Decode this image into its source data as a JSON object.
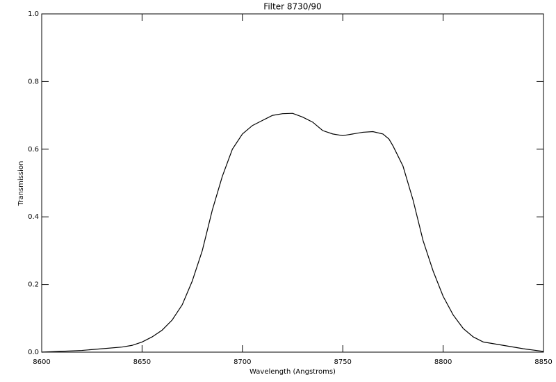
{
  "chart_data": {
    "type": "line",
    "title": "Filter 8730/90",
    "x_label": "Wavelength (Angstroms)",
    "y_label": "Transmission",
    "x": [
      8600,
      8620,
      8630,
      8640,
      8645,
      8650,
      8655,
      8660,
      8665,
      8670,
      8675,
      8680,
      8685,
      8690,
      8695,
      8700,
      8705,
      8710,
      8715,
      8720,
      8725,
      8730,
      8735,
      8740,
      8745,
      8750,
      8755,
      8760,
      8765,
      8770,
      8773,
      8775,
      8780,
      8785,
      8790,
      8795,
      8800,
      8805,
      8810,
      8815,
      8820,
      8830,
      8840,
      8850
    ],
    "series": [
      {
        "color": "#000000",
        "values": [
          0.0,
          0.005,
          0.01,
          0.015,
          0.02,
          0.03,
          0.045,
          0.065,
          0.095,
          0.14,
          0.21,
          0.3,
          0.42,
          0.52,
          0.6,
          0.645,
          0.67,
          0.685,
          0.7,
          0.705,
          0.706,
          0.695,
          0.68,
          0.655,
          0.645,
          0.64,
          0.645,
          0.65,
          0.652,
          0.645,
          0.63,
          0.61,
          0.55,
          0.45,
          0.33,
          0.24,
          0.165,
          0.11,
          0.07,
          0.045,
          0.03,
          0.02,
          0.01,
          0.002
        ]
      }
    ],
    "xlim": [
      8600,
      8850
    ],
    "xticks": [
      8600,
      8650,
      8700,
      8750,
      8800,
      8850
    ],
    "ylim": [
      0,
      1
    ],
    "yticks": [
      {
        "value": 0,
        "label": "0.0"
      },
      0.2,
      0.4,
      0.6,
      0.8,
      {
        "value": 1,
        "label": "1.0"
      }
    ],
    "grid": false
  }
}
